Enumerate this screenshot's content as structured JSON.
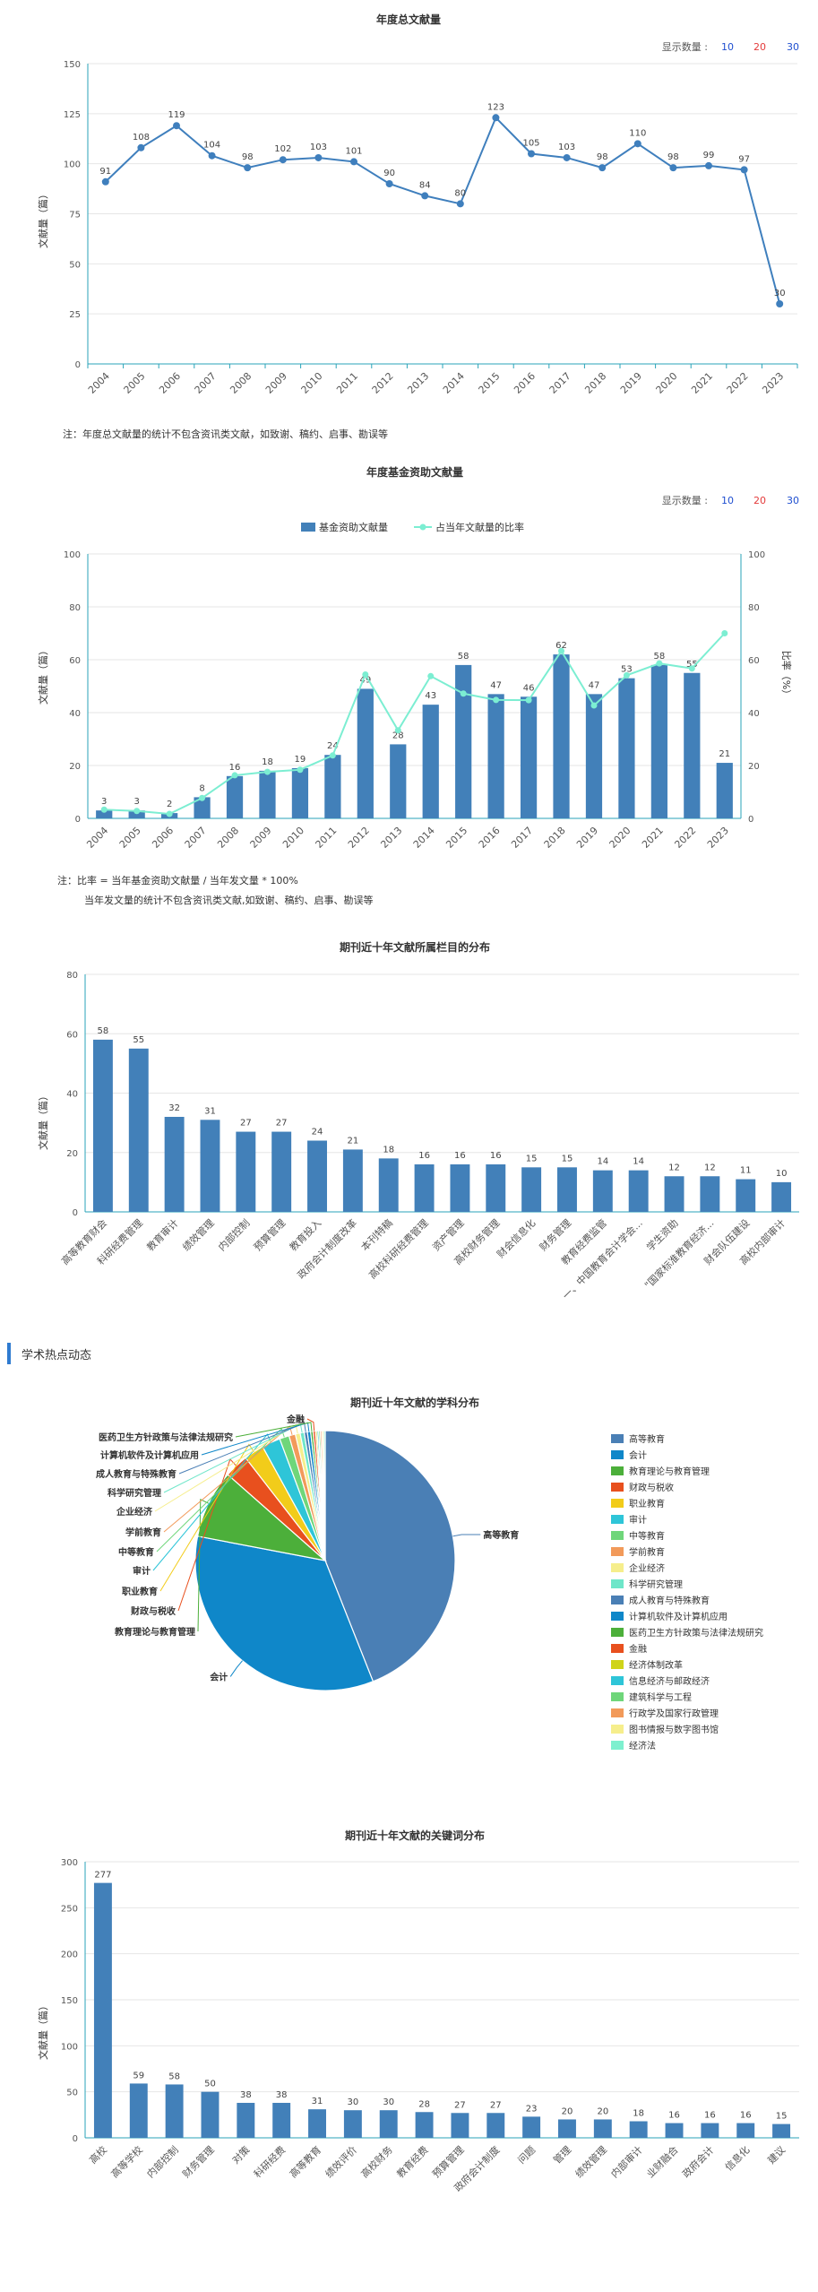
{
  "section": {
    "title": "学术热点动态"
  },
  "notes": {
    "c1": "注：年度总文献量的统计不包含资讯类文献，如致谢、稿约、启事、勘误等",
    "c2_line1": "注：比率 = 当年基金资助文献量 / 当年发文量 * 100%",
    "c2_line2": "当年发文量的统计不包含资讯类文献,如致谢、稿约、启事、勘误等"
  },
  "chart_data": [
    {
      "type": "line",
      "title": "年度总文献量",
      "ylabel": "文献量（篇）",
      "ylim": [
        0,
        150
      ],
      "yticks": [
        0,
        25,
        50,
        75,
        100,
        125,
        150
      ],
      "x": [
        "2004",
        "2005",
        "2006",
        "2007",
        "2008",
        "2009",
        "2010",
        "2011",
        "2012",
        "2013",
        "2014",
        "2015",
        "2016",
        "2017",
        "2018",
        "2019",
        "2020",
        "2021",
        "2022",
        "2023"
      ],
      "values": [
        91,
        108,
        119,
        104,
        98,
        102,
        103,
        101,
        90,
        84,
        80,
        123,
        105,
        103,
        98,
        110,
        98,
        99,
        97,
        30
      ],
      "display_count": {
        "label": "显示数量 :",
        "options": [
          "10",
          "20",
          "30"
        ]
      },
      "colors": {
        "line": "#3f7fbd",
        "axis": "#2aa3b8"
      }
    },
    {
      "type": "bar",
      "title": "年度基金资助文献量",
      "ylabel": "文献量（篇）",
      "y2label": "比率（%）",
      "ylim": [
        0,
        100
      ],
      "y2lim": [
        0,
        100
      ],
      "yticks": [
        0,
        20,
        40,
        60,
        80,
        100
      ],
      "legend": [
        "基金资助文献量",
        "占当年文献量的比率"
      ],
      "categories": [
        "2004",
        "2005",
        "2006",
        "2007",
        "2008",
        "2009",
        "2010",
        "2011",
        "2012",
        "2013",
        "2014",
        "2015",
        "2016",
        "2017",
        "2018",
        "2019",
        "2020",
        "2021",
        "2022",
        "2023"
      ],
      "series": [
        {
          "name": "基金资助文献量",
          "values": [
            3,
            3,
            2,
            8,
            16,
            18,
            19,
            24,
            49,
            28,
            43,
            58,
            47,
            46,
            62,
            47,
            53,
            58,
            55,
            21
          ]
        },
        {
          "name": "占当年文献量的比率",
          "values": [
            3.3,
            2.8,
            1.7,
            7.7,
            16.3,
            17.6,
            18.4,
            23.8,
            54.4,
            33.3,
            53.8,
            47.2,
            44.8,
            44.7,
            63.3,
            42.7,
            54.1,
            58.6,
            56.7,
            70.0
          ]
        }
      ],
      "display_count": {
        "label": "显示数量 :",
        "options": [
          "10",
          "20",
          "30"
        ]
      },
      "colors": {
        "bar": "#4280b9",
        "line": "#7ceed2"
      }
    },
    {
      "type": "bar",
      "title": "期刊近十年文献所属栏目的分布",
      "ylabel": "文献量（篇）",
      "ylim": [
        0,
        80
      ],
      "yticks": [
        0,
        20,
        40,
        60,
        80
      ],
      "categories": [
        "高等教育财会",
        "科研经费管理",
        "教育审计",
        "绩效管理",
        "内部控制",
        "预算管理",
        "教育投入",
        "政府会计制度改革",
        "本刊特稿",
        "高校科研经费管理",
        "资产管理",
        "高校财务管理",
        "财会信息化",
        "财务管理",
        "教育经费监管",
        "一、中国教育会计学会...",
        "学生资助",
        "\"国家标准教育经济...",
        "财会队伍建设",
        "高校内部审计"
      ],
      "values": [
        58,
        55,
        32,
        31,
        27,
        27,
        24,
        21,
        18,
        16,
        16,
        16,
        15,
        15,
        14,
        14,
        12,
        12,
        11,
        10
      ],
      "colors": {
        "bar": "#4280b9"
      }
    },
    {
      "type": "pie",
      "title": "期刊近十年文献的学科分布",
      "slices": [
        {
          "label": "高等教育",
          "value": 44.0,
          "color": "#4a7fb5"
        },
        {
          "label": "会计",
          "value": 34.0,
          "color": "#0f87c9"
        },
        {
          "label": "教育理论与教育管理",
          "value": 8.5,
          "color": "#4caf3a"
        },
        {
          "label": "财政与税收",
          "value": 3.0,
          "color": "#e8501e"
        },
        {
          "label": "职业教育",
          "value": 2.5,
          "color": "#f2cc1a"
        },
        {
          "label": "审计",
          "value": 2.3,
          "color": "#2ec5d8"
        },
        {
          "label": "中等教育",
          "value": 1.2,
          "color": "#6fd67a"
        },
        {
          "label": "学前教育",
          "value": 0.8,
          "color": "#f29a5a"
        },
        {
          "label": "企业经济",
          "value": 0.6,
          "color": "#f6ee8c"
        },
        {
          "label": "科学研究管理",
          "value": 0.5,
          "color": "#6ee6c9"
        },
        {
          "label": "成人教育与特殊教育",
          "value": 0.4,
          "color": "#4a7fb5"
        },
        {
          "label": "计算机软件及计算机应用",
          "value": 0.4,
          "color": "#0f87c9"
        },
        {
          "label": "医药卫生方针政策与法律法规研究",
          "value": 0.3,
          "color": "#4caf3a"
        },
        {
          "label": "金融",
          "value": 0.3,
          "color": "#e8501e"
        },
        {
          "label": "经济体制改革",
          "value": 0.2,
          "color": "#cfd41a"
        },
        {
          "label": "信息经济与邮政经济",
          "value": 0.2,
          "color": "#2ec5d8"
        },
        {
          "label": "建筑科学与工程",
          "value": 0.2,
          "color": "#6fd67a"
        },
        {
          "label": "行政学及国家行政管理",
          "value": 0.2,
          "color": "#f29a5a"
        },
        {
          "label": "图书情报与数字图书馆",
          "value": 0.2,
          "color": "#f6ee8c"
        },
        {
          "label": "经济法",
          "value": 0.2,
          "color": "#7ef0cf"
        }
      ],
      "shown_labels": [
        "高等教育",
        "会计",
        "教育理论与教育管理",
        "财政与税收",
        "职业教育",
        "审计",
        "中等教育",
        "学前教育",
        "企业经济",
        "科学研究管理",
        "成人教育与特殊教育",
        "计算机软件及计算机应用",
        "医药卫生方针政策与法律法规研究",
        "金融"
      ]
    },
    {
      "type": "bar",
      "title": "期刊近十年文献的关键词分布",
      "ylabel": "文献量（篇）",
      "ylim": [
        0,
        300
      ],
      "yticks": [
        0,
        50,
        100,
        150,
        200,
        250,
        300
      ],
      "categories": [
        "高校",
        "高等学校",
        "内部控制",
        "财务管理",
        "对策",
        "科研经费",
        "高等教育",
        "绩效评价",
        "高校财务",
        "教育经费",
        "预算管理",
        "政府会计制度",
        "问题",
        "管理",
        "绩效管理",
        "内部审计",
        "业财融合",
        "政府会计",
        "信息化",
        "建议"
      ],
      "values": [
        277,
        59,
        58,
        50,
        38,
        38,
        31,
        30,
        30,
        28,
        27,
        27,
        23,
        20,
        20,
        18,
        16,
        16,
        16,
        15
      ],
      "colors": {
        "bar": "#4280b9"
      }
    }
  ]
}
